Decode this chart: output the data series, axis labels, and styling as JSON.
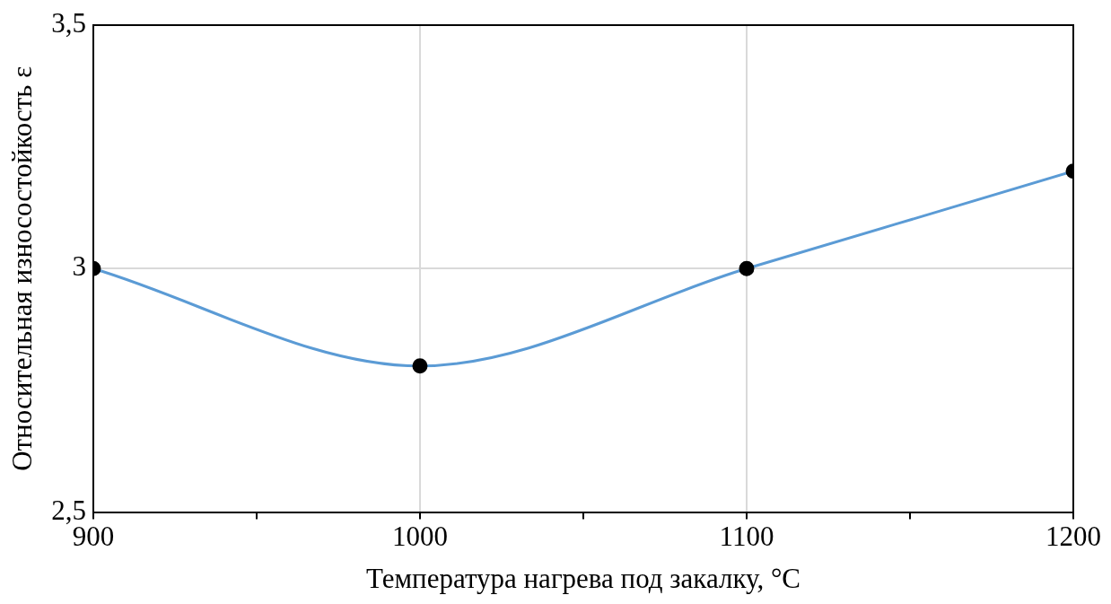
{
  "chart_data": {
    "type": "line",
    "xlabel": "Температура нагрева под закалку, °C",
    "ylabel": "Относительная износостойкость ε",
    "x": [
      900,
      1000,
      1100,
      1200
    ],
    "series": [
      {
        "color": "#5b9bd5",
        "values": [
          3,
          2.8,
          3,
          3.2
        ]
      }
    ],
    "xlim": [
      900,
      1200
    ],
    "xticks": [
      900,
      {
        "value": 950,
        "label": null
      },
      1000,
      {
        "value": 1050,
        "label": null
      },
      1100,
      {
        "value": 1150,
        "label": null
      },
      1200
    ],
    "ylim": [
      2.5,
      3.5
    ],
    "yticks": [
      {
        "value": 2.5,
        "label": "2,5"
      },
      3,
      {
        "value": 3.5,
        "label": "3,5"
      }
    ],
    "grid": true,
    "legend": false,
    "marker": "circle",
    "line_style": "solid"
  }
}
